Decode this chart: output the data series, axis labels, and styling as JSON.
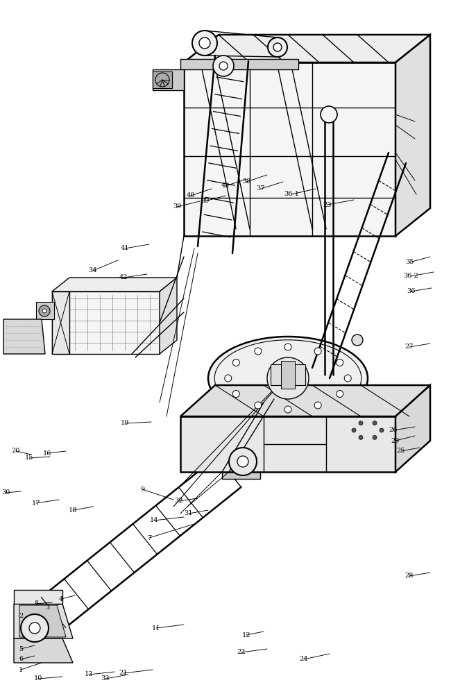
{
  "bg_color": "#ffffff",
  "line_color": "#000000",
  "lw": 1.0,
  "tlw": 1.8,
  "fig_w": 6.5,
  "fig_h": 10.0,
  "dpi": 100
}
